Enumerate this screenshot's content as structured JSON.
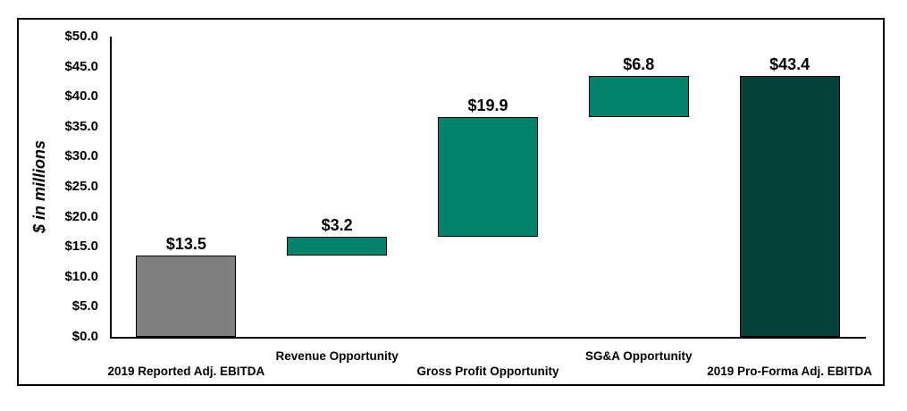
{
  "chart_data": {
    "type": "bar",
    "subtype": "waterfall",
    "title": "",
    "ylabel": "$ in millions",
    "xlabel": "",
    "ylim": [
      0,
      50
    ],
    "ytick_interval": 5,
    "ytick_labels": [
      "$0.0",
      "$5.0",
      "$10.0",
      "$15.0",
      "$20.0",
      "$25.0",
      "$30.0",
      "$35.0",
      "$40.0",
      "$45.0",
      "$50.0"
    ],
    "grid": false,
    "legend_position": "none",
    "categories": [
      "2019 Reported Adj. EBITDA",
      "Revenue Opportunity",
      "Gross Profit Opportunity",
      "SG&A Opportunity",
      "2019 Pro-Forma Adj. EBITDA"
    ],
    "values": [
      13.5,
      3.2,
      19.9,
      6.8,
      43.4
    ],
    "segment_start": [
      0,
      13.5,
      16.7,
      36.6,
      0
    ],
    "segment_end": [
      13.5,
      16.7,
      36.6,
      43.4,
      43.4
    ],
    "value_labels": [
      "$13.5",
      "$3.2",
      "$19.9",
      "$6.8",
      "$43.4"
    ],
    "bar_colors": [
      "#7F7F7F",
      "#00826B",
      "#00826B",
      "#00826B",
      "#05423A"
    ],
    "bar_border_color": "#000000",
    "colors": {
      "reported_bar": "#7F7F7F",
      "opportunity_bar": "#00826B",
      "proforma_bar": "#05423A",
      "axis": "#000000",
      "text": "#000000",
      "background": "#FFFFFF"
    }
  }
}
